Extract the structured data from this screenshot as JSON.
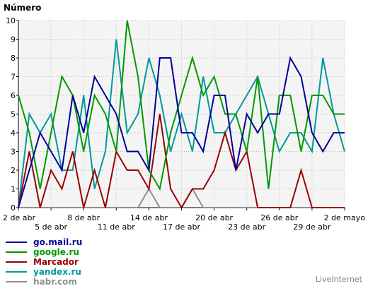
{
  "chart_data": {
    "type": "line",
    "ylabel": "Número",
    "ylim": [
      0,
      10
    ],
    "yticks": [
      "0",
      "1",
      "2",
      "3",
      "4",
      "5",
      "6",
      "7",
      "8",
      "9",
      "10"
    ],
    "x": [
      "2 de abr",
      "3 de abr",
      "4 de abr",
      "5 de abr",
      "6 de abr",
      "7 de abr",
      "8 de abr",
      "9 de abr",
      "10 de abr",
      "11 de abr",
      "12 de abr",
      "13 de abr",
      "14 de abr",
      "15 de abr",
      "16 de abr",
      "17 de abr",
      "18 de abr",
      "19 de abr",
      "20 de abr",
      "21 de abr",
      "22 de abr",
      "23 de abr",
      "24 de abr",
      "25 de abr",
      "26 de abr",
      "27 de abr",
      "28 de abr",
      "29 de abr",
      "30 de abr",
      "1 de mayo",
      "2 de mayo"
    ],
    "xtick_labels_row1": [
      {
        "label": "2 de abr",
        "index": 0
      },
      {
        "label": "8 de abr",
        "index": 6
      },
      {
        "label": "14 de abr",
        "index": 12
      },
      {
        "label": "20 de abr",
        "index": 18
      },
      {
        "label": "26 de abr",
        "index": 24
      },
      {
        "label": "2 de mayo",
        "index": 30
      }
    ],
    "xtick_labels_row2": [
      {
        "label": "5 de abr",
        "index": 3
      },
      {
        "label": "11 de abr",
        "index": 9
      },
      {
        "label": "17 de abr",
        "index": 15
      },
      {
        "label": "23 de abr",
        "index": 21
      },
      {
        "label": "29 de abr",
        "index": 27
      }
    ],
    "grid": true,
    "legend_position": "bottom-left",
    "series": [
      {
        "name": "go.mail.ru",
        "color": "#000099",
        "values": [
          0,
          2,
          4,
          3,
          2,
          6,
          4,
          7,
          6,
          5,
          3,
          3,
          2,
          8,
          8,
          4,
          4,
          3,
          6,
          6,
          2,
          5,
          4,
          5,
          5,
          8,
          7,
          4,
          3,
          4,
          4
        ]
      },
      {
        "name": "google.ru",
        "color": "#009900",
        "values": [
          6,
          4,
          1,
          4,
          7,
          6,
          3,
          6,
          5,
          3,
          10,
          7,
          2,
          1,
          4,
          6,
          8,
          6,
          7,
          5,
          5,
          3,
          7,
          1,
          6,
          6,
          3,
          6,
          6,
          5,
          5
        ]
      },
      {
        "name": "Marcador",
        "color": "#990000",
        "values": [
          0,
          3,
          0,
          2,
          1,
          3,
          0,
          2,
          0,
          3,
          2,
          2,
          1,
          5,
          1,
          0,
          1,
          1,
          2,
          4,
          2,
          3,
          0,
          0,
          0,
          0,
          2,
          0,
          0,
          0,
          0
        ]
      },
      {
        "name": "yandex.ru",
        "color": "#009999",
        "values": [
          0,
          5,
          4,
          5,
          2,
          2,
          6,
          1,
          3,
          9,
          4,
          5,
          8,
          6,
          3,
          5,
          3,
          7,
          4,
          4,
          5,
          6,
          7,
          5,
          3,
          4,
          4,
          3,
          8,
          5,
          3
        ]
      },
      {
        "name": "habr.com",
        "color": "#909090",
        "values": [
          0,
          0,
          0,
          0,
          0,
          0,
          0,
          0,
          0,
          0,
          0,
          0,
          1,
          0,
          0,
          0,
          1,
          0,
          0,
          0,
          0,
          0,
          0,
          0,
          0,
          0,
          0,
          0,
          0,
          0,
          0
        ]
      }
    ]
  },
  "brand": "LiveInternet"
}
